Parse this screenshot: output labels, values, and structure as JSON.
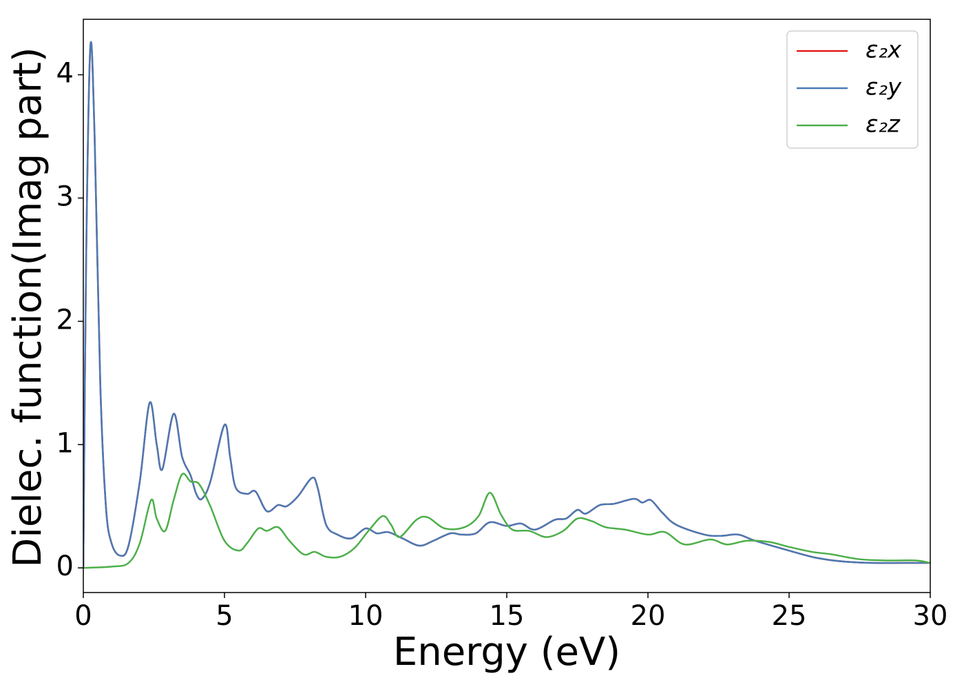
{
  "chart_data": {
    "type": "line",
    "xlabel": "Energy (eV)",
    "ylabel": "Dielec. function(Imag part)",
    "xlim": [
      0,
      30
    ],
    "xticks": [
      0,
      5,
      10,
      15,
      20,
      25,
      30
    ],
    "ylim": [
      -0.2,
      4.45
    ],
    "yticks": [
      0,
      1,
      2,
      3,
      4
    ],
    "legend": "upper right",
    "grid": false,
    "series": [
      {
        "name": "ε₂x",
        "color": "#e41a1c",
        "x": [
          0,
          0.1,
          0.25,
          0.4,
          0.6,
          0.8,
          1.0,
          1.3,
          1.6,
          2.0,
          2.35,
          2.6,
          2.8,
          3.2,
          3.5,
          3.8,
          4.0,
          4.2,
          4.5,
          5.0,
          5.2,
          5.4,
          5.8,
          6.1,
          6.5,
          6.9,
          7.2,
          7.6,
          8.1,
          8.3,
          8.6,
          9.0,
          9.5,
          10.0,
          10.4,
          10.8,
          11.3,
          11.9,
          12.4,
          13.0,
          13.4,
          13.9,
          14.4,
          15.0,
          15.5,
          16.0,
          16.7,
          17.1,
          17.5,
          17.8,
          18.3,
          18.8,
          19.5,
          19.8,
          20.1,
          20.5,
          21.0,
          22.0,
          22.6,
          23.2,
          23.8,
          25.0,
          26.0,
          27.0,
          28.0,
          29.0,
          30.0
        ],
        "values": [
          0,
          2.5,
          4.23,
          3.5,
          1.5,
          0.5,
          0.2,
          0.1,
          0.18,
          0.7,
          1.34,
          1.0,
          0.8,
          1.25,
          0.9,
          0.75,
          0.6,
          0.56,
          0.7,
          1.16,
          0.9,
          0.65,
          0.6,
          0.62,
          0.46,
          0.51,
          0.5,
          0.58,
          0.73,
          0.65,
          0.35,
          0.27,
          0.24,
          0.32,
          0.28,
          0.29,
          0.24,
          0.18,
          0.22,
          0.28,
          0.27,
          0.28,
          0.37,
          0.34,
          0.36,
          0.31,
          0.39,
          0.4,
          0.47,
          0.44,
          0.51,
          0.52,
          0.56,
          0.53,
          0.55,
          0.45,
          0.35,
          0.27,
          0.26,
          0.27,
          0.22,
          0.14,
          0.08,
          0.05,
          0.04,
          0.04,
          0.04
        ]
      },
      {
        "name": "ε₂y",
        "color": "#4a7ab5",
        "x": [
          0,
          0.1,
          0.25,
          0.4,
          0.6,
          0.8,
          1.0,
          1.3,
          1.6,
          2.0,
          2.35,
          2.6,
          2.8,
          3.2,
          3.5,
          3.8,
          4.0,
          4.2,
          4.5,
          5.0,
          5.2,
          5.4,
          5.8,
          6.1,
          6.5,
          6.9,
          7.2,
          7.6,
          8.1,
          8.3,
          8.6,
          9.0,
          9.5,
          10.0,
          10.4,
          10.8,
          11.3,
          11.9,
          12.4,
          13.0,
          13.4,
          13.9,
          14.4,
          15.0,
          15.5,
          16.0,
          16.7,
          17.1,
          17.5,
          17.8,
          18.3,
          18.8,
          19.5,
          19.8,
          20.1,
          20.5,
          21.0,
          22.0,
          22.6,
          23.2,
          23.8,
          25.0,
          26.0,
          27.0,
          28.0,
          29.0,
          30.0
        ],
        "values": [
          0,
          2.5,
          4.23,
          3.5,
          1.5,
          0.5,
          0.2,
          0.1,
          0.18,
          0.7,
          1.34,
          1.0,
          0.8,
          1.25,
          0.9,
          0.75,
          0.6,
          0.56,
          0.7,
          1.16,
          0.9,
          0.65,
          0.6,
          0.62,
          0.46,
          0.51,
          0.5,
          0.58,
          0.73,
          0.65,
          0.35,
          0.27,
          0.24,
          0.32,
          0.28,
          0.29,
          0.24,
          0.18,
          0.22,
          0.28,
          0.27,
          0.28,
          0.37,
          0.34,
          0.36,
          0.31,
          0.39,
          0.4,
          0.47,
          0.44,
          0.51,
          0.52,
          0.56,
          0.53,
          0.55,
          0.45,
          0.35,
          0.27,
          0.26,
          0.27,
          0.22,
          0.14,
          0.08,
          0.05,
          0.04,
          0.04,
          0.04
        ]
      },
      {
        "name": "ε₂z",
        "color": "#4daf4a",
        "x": [
          0,
          1.0,
          1.6,
          2.0,
          2.4,
          2.6,
          2.9,
          3.2,
          3.5,
          3.8,
          4.1,
          4.5,
          5.0,
          5.5,
          5.8,
          6.2,
          6.5,
          6.9,
          7.3,
          7.8,
          8.2,
          8.6,
          9.1,
          9.6,
          10.1,
          10.6,
          10.9,
          11.2,
          11.8,
          12.2,
          12.8,
          13.5,
          14.0,
          14.4,
          14.8,
          15.2,
          15.8,
          16.4,
          17.0,
          17.5,
          18.0,
          18.5,
          19.2,
          20.0,
          20.6,
          21.3,
          22.2,
          22.8,
          23.5,
          24.3,
          25.0,
          25.8,
          26.5,
          27.5,
          28.5,
          29.5,
          30.0
        ],
        "values": [
          0,
          0.01,
          0.04,
          0.2,
          0.55,
          0.4,
          0.3,
          0.55,
          0.76,
          0.7,
          0.68,
          0.5,
          0.22,
          0.14,
          0.2,
          0.32,
          0.3,
          0.33,
          0.22,
          0.11,
          0.13,
          0.09,
          0.09,
          0.16,
          0.3,
          0.42,
          0.35,
          0.25,
          0.39,
          0.41,
          0.32,
          0.33,
          0.42,
          0.61,
          0.43,
          0.31,
          0.3,
          0.25,
          0.3,
          0.4,
          0.38,
          0.33,
          0.31,
          0.27,
          0.29,
          0.19,
          0.23,
          0.19,
          0.22,
          0.21,
          0.17,
          0.13,
          0.11,
          0.07,
          0.06,
          0.06,
          0.04
        ]
      }
    ]
  }
}
